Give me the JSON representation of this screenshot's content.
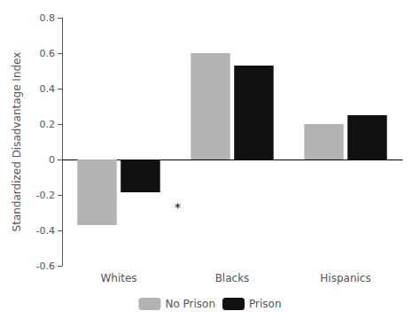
{
  "chart_data": {
    "type": "bar",
    "categories": [
      "Whites",
      "Blacks",
      "Hispanics"
    ],
    "series": [
      {
        "name": "No Prison",
        "color": "#b3b3b3",
        "values": [
          -0.37,
          0.6,
          0.2
        ]
      },
      {
        "name": "Prison",
        "color": "#111111",
        "values": [
          -0.185,
          0.53,
          0.25
        ]
      }
    ],
    "ylabel": "Standardized Disadvantage Index",
    "ylim": [
      -0.6,
      0.8
    ],
    "yticks": [
      -0.6,
      -0.4,
      -0.2,
      0,
      0.2,
      0.4,
      0.6,
      0.8
    ],
    "annotations": [
      {
        "text": "*",
        "category": "Whites",
        "series": "Prison",
        "y": -0.27
      }
    ],
    "grid": false,
    "legend": "bottom"
  }
}
